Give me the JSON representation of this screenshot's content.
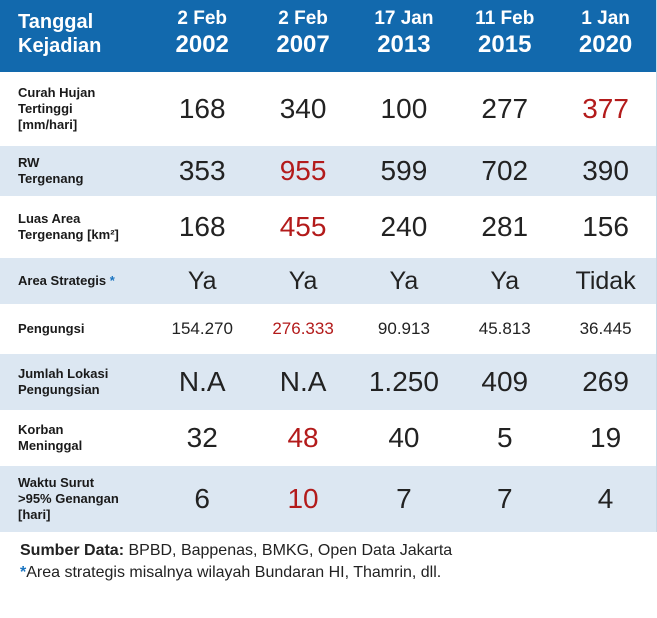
{
  "header": {
    "label_line1": "Tanggal",
    "label_line2": "Kejadian",
    "columns": [
      {
        "date": "2 Feb",
        "year": "2002"
      },
      {
        "date": "2 Feb",
        "year": "2007"
      },
      {
        "date": "17 Jan",
        "year": "2013"
      },
      {
        "date": "11 Feb",
        "year": "2015"
      },
      {
        "date": "1 Jan",
        "year": "2020"
      }
    ]
  },
  "rows": [
    {
      "label_lines": [
        "Curah Hujan",
        "Tertinggi",
        "[mm/hari]"
      ],
      "values": [
        "168",
        "340",
        "100",
        "277",
        "377"
      ]
    },
    {
      "label_lines": [
        "RW",
        "Tergenang"
      ],
      "values": [
        "353",
        "955",
        "599",
        "702",
        "390"
      ]
    },
    {
      "label_lines": [
        "Luas Area",
        "Tergenang [km²]"
      ],
      "values": [
        "168",
        "455",
        "240",
        "281",
        "156"
      ]
    },
    {
      "label_lines": [
        "Area Strategis"
      ],
      "star": "*",
      "values": [
        "Ya",
        "Ya",
        "Ya",
        "Ya",
        "Tidak"
      ]
    },
    {
      "label_lines": [
        "Pengungsi"
      ],
      "values": [
        "154.270",
        "276.333",
        "90.913",
        "45.813",
        "36.445"
      ]
    },
    {
      "label_lines": [
        "Jumlah Lokasi",
        "Pengungsian"
      ],
      "values": [
        "N.A",
        "N.A",
        "1.250",
        "409",
        "269"
      ]
    },
    {
      "label_lines": [
        "Korban",
        "Meninggal"
      ],
      "values": [
        "32",
        "48",
        "40",
        "5",
        "19"
      ]
    },
    {
      "label_lines": [
        "Waktu Surut",
        ">95% Genangan",
        "[hari]"
      ],
      "values": [
        "6",
        "10",
        "7",
        "7",
        "4"
      ]
    }
  ],
  "colors": {
    "header_bg": "#1269ad",
    "alt_row_bg": "#dce7f2",
    "highlight_red": "#b31b1b",
    "star_blue": "#1a74c0"
  },
  "footer": {
    "source_label": "Sumber Data:",
    "source_text": " BPBD, Bappenas, BMKG, Open Data Jakarta",
    "note_star": "*",
    "note_text": "Area strategis misalnya wilayah Bundaran HI, Thamrin, dll."
  }
}
